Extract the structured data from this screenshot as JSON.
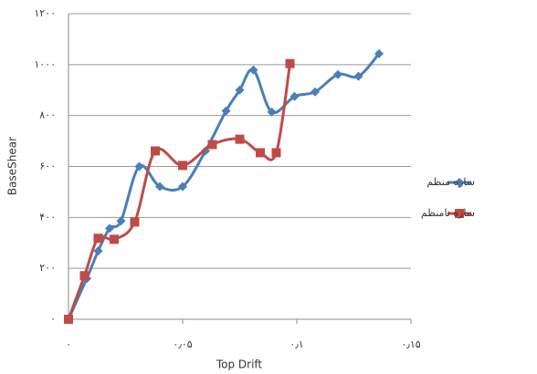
{
  "chart_data": {
    "type": "line",
    "xlabel": "Top Drift",
    "ylabel": "BaseShear",
    "xlim": [
      0,
      0.15
    ],
    "ylim": [
      0,
      1200
    ],
    "xticks": [
      {
        "value": 0,
        "label": "۰"
      },
      {
        "value": 0.05,
        "label": "۰٫۰۵"
      },
      {
        "value": 0.1,
        "label": "۰٫۱"
      },
      {
        "value": 0.15,
        "label": "۰٫۱۵"
      }
    ],
    "yticks": [
      {
        "value": 0,
        "label": "۰"
      },
      {
        "value": 200,
        "label": "۲۰۰"
      },
      {
        "value": 400,
        "label": "۴۰۰"
      },
      {
        "value": 600,
        "label": "۶۰۰"
      },
      {
        "value": 800,
        "label": "۸۰۰"
      },
      {
        "value": 1000,
        "label": "۱۰۰۰"
      },
      {
        "value": 1200,
        "label": "۱۲۰۰"
      }
    ],
    "grid": true,
    "legend": "right",
    "series": [
      {
        "name": "سازه منظم",
        "color": "#4a7ebb",
        "marker": "diamond",
        "x": [
          0,
          0.008,
          0.013,
          0.018,
          0.023,
          0.031,
          0.04,
          0.05,
          0.06,
          0.069,
          0.075,
          0.081,
          0.089,
          0.099,
          0.108,
          0.118,
          0.127,
          0.136
        ],
        "values": [
          0,
          160,
          268,
          357,
          386,
          600,
          521,
          521,
          661,
          818,
          900,
          979,
          814,
          875,
          893,
          961,
          954,
          1043
        ]
      },
      {
        "name": "سازه نامنظم",
        "color": "#be4b48",
        "marker": "square",
        "x": [
          0,
          0.007,
          0.013,
          0.02,
          0.029,
          0.038,
          0.05,
          0.063,
          0.075,
          0.084,
          0.091,
          0.097
        ],
        "values": [
          0,
          171,
          318,
          314,
          382,
          661,
          604,
          686,
          707,
          654,
          654,
          1004
        ]
      }
    ]
  }
}
